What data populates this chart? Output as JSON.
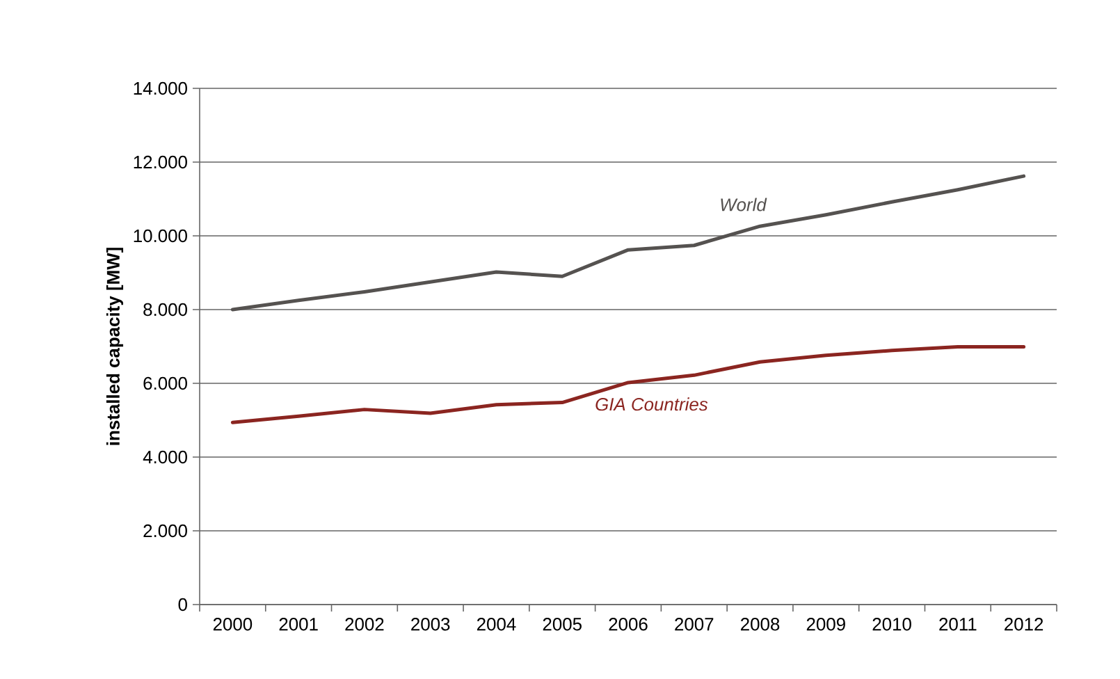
{
  "chart_data": {
    "type": "line",
    "ylabel": "installed capacity [MW]",
    "categories": [
      "2000",
      "2001",
      "2002",
      "2003",
      "2004",
      "2005",
      "2006",
      "2007",
      "2008",
      "2009",
      "2010",
      "2011",
      "2012"
    ],
    "series": [
      {
        "name": "World",
        "color": "#555250",
        "values": [
          8000,
          8250,
          8480,
          8750,
          9020,
          8900,
          9620,
          9740,
          10260,
          10570,
          10920,
          11250,
          11620
        ]
      },
      {
        "name": "GIA Countries",
        "color": "#8b2520",
        "values": [
          4940,
          5110,
          5290,
          5190,
          5420,
          5480,
          6020,
          6220,
          6580,
          6760,
          6890,
          6990,
          6990
        ]
      }
    ],
    "ylim": [
      0,
      14000
    ],
    "yticks": [
      {
        "value": 0,
        "label": "0"
      },
      {
        "value": 2000,
        "label": "2.000"
      },
      {
        "value": 4000,
        "label": "4.000"
      },
      {
        "value": 6000,
        "label": "6.000"
      },
      {
        "value": 8000,
        "label": "8.000"
      },
      {
        "value": 10000,
        "label": "10.000"
      },
      {
        "value": 12000,
        "label": "12.000"
      },
      {
        "value": 14000,
        "label": "14.000"
      }
    ],
    "grid": "y",
    "legend": false,
    "marker": "none",
    "line_style": "solid"
  }
}
